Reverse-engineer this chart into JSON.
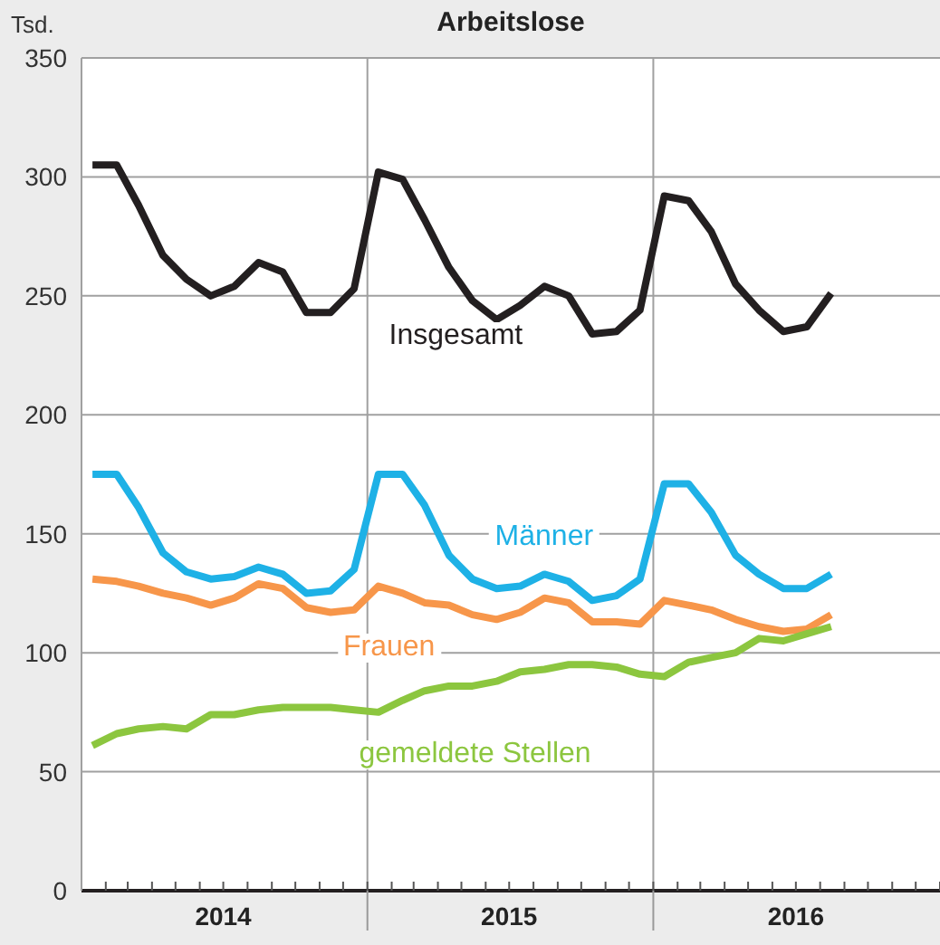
{
  "chart_data": {
    "type": "line",
    "title": "Arbeitslose",
    "ylabel": "Tsd.",
    "x": [
      "2014-01-15",
      "2014-02-15",
      "2014-03-15",
      "2014-04-15",
      "2014-05-15",
      "2014-06-15",
      "2014-07-15",
      "2014-08-15",
      "2014-09-15",
      "2014-10-15",
      "2014-11-15",
      "2014-12-15",
      "2015-01-15",
      "2015-02-15",
      "2015-03-15",
      "2015-04-15",
      "2015-05-15",
      "2015-06-15",
      "2015-07-15",
      "2015-08-15",
      "2015-09-15",
      "2015-10-15",
      "2015-11-15",
      "2015-12-15",
      "2016-01-15",
      "2016-02-15",
      "2016-03-15",
      "2016-04-15",
      "2016-05-15",
      "2016-06-15",
      "2016-07-15",
      "2016-08-15"
    ],
    "series": [
      {
        "name": "Insgesamt",
        "color": "#231f20",
        "values": [
          305,
          305,
          288,
          267,
          257,
          250,
          254,
          264,
          260,
          243,
          243,
          253,
          302,
          299,
          282,
          262,
          248,
          240,
          246,
          254,
          250,
          234,
          235,
          244,
          292,
          290,
          277,
          255,
          244,
          235,
          237,
          251
        ]
      },
      {
        "name": "Männer",
        "color": "#1eb1e6",
        "values": [
          175,
          175,
          161,
          142,
          134,
          131,
          132,
          136,
          133,
          125,
          126,
          135,
          175,
          175,
          162,
          141,
          131,
          127,
          128,
          133,
          130,
          122,
          124,
          131,
          171,
          171,
          159,
          141,
          133,
          127,
          127,
          133
        ]
      },
      {
        "name": "Frauen",
        "color": "#f7964a",
        "values": [
          131,
          130,
          128,
          125,
          123,
          120,
          123,
          129,
          127,
          119,
          117,
          118,
          128,
          125,
          121,
          120,
          116,
          114,
          117,
          123,
          121,
          113,
          113,
          112,
          122,
          120,
          118,
          114,
          111,
          109,
          110,
          116
        ]
      },
      {
        "name": "gemeldete Stellen",
        "color": "#8cc63f",
        "values": [
          61,
          66,
          68,
          69,
          68,
          74,
          74,
          76,
          77,
          77,
          77,
          76,
          75,
          80,
          84,
          86,
          86,
          88,
          92,
          93,
          95,
          95,
          94,
          91,
          90,
          96,
          98,
          100,
          106,
          105,
          108,
          111
        ]
      }
    ],
    "xlim": [
      "2014-01",
      "2017-01"
    ],
    "xticks": [
      {
        "value": "2014-01",
        "label": null
      },
      {
        "value": "2014-02",
        "label": null
      },
      {
        "value": "2014-03",
        "label": null
      },
      {
        "value": "2014-04",
        "label": null
      },
      {
        "value": "2014-05",
        "label": null
      },
      {
        "value": "2014-06",
        "label": null
      },
      {
        "value": "2014-07",
        "label": "2014"
      },
      {
        "value": "2014-08",
        "label": null
      },
      {
        "value": "2014-09",
        "label": null
      },
      {
        "value": "2014-10",
        "label": null
      },
      {
        "value": "2014-11",
        "label": null
      },
      {
        "value": "2014-12",
        "label": null
      },
      {
        "value": "2015-01",
        "label": null
      },
      {
        "value": "2015-02",
        "label": null
      },
      {
        "value": "2015-03",
        "label": null
      },
      {
        "value": "2015-04",
        "label": null
      },
      {
        "value": "2015-05",
        "label": null
      },
      {
        "value": "2015-06",
        "label": null
      },
      {
        "value": "2015-07",
        "label": "2015"
      },
      {
        "value": "2015-08",
        "label": null
      },
      {
        "value": "2015-09",
        "label": null
      },
      {
        "value": "2015-10",
        "label": null
      },
      {
        "value": "2015-11",
        "label": null
      },
      {
        "value": "2015-12",
        "label": null
      },
      {
        "value": "2016-01",
        "label": null
      },
      {
        "value": "2016-02",
        "label": null
      },
      {
        "value": "2016-03",
        "label": null
      },
      {
        "value": "2016-04",
        "label": null
      },
      {
        "value": "2016-05",
        "label": null
      },
      {
        "value": "2016-06",
        "label": null
      },
      {
        "value": "2016-07",
        "label": "2016"
      },
      {
        "value": "2016-08",
        "label": null
      },
      {
        "value": "2016-09",
        "label": null
      },
      {
        "value": "2016-10",
        "label": null
      },
      {
        "value": "2016-11",
        "label": null
      },
      {
        "value": "2016-12",
        "label": null
      },
      {
        "value": "2017-01",
        "label": null
      }
    ],
    "ylim": [
      0,
      350
    ],
    "yticks": [
      0,
      50,
      100,
      150,
      200,
      250,
      300,
      350
    ],
    "ref_lines": [
      {
        "axis": "x",
        "value": "2015-01",
        "label": null
      },
      {
        "axis": "x",
        "value": "2016-01",
        "label": null
      }
    ],
    "grid": "y",
    "legend": false,
    "marker": "none"
  }
}
